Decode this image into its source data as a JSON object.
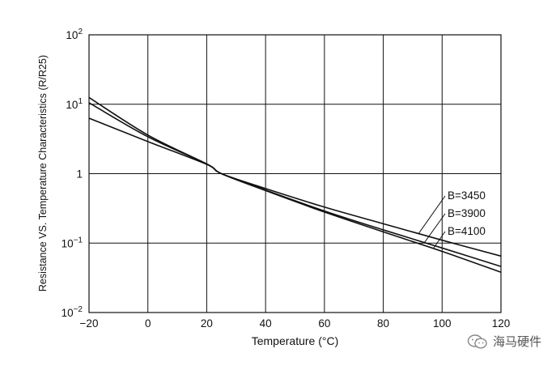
{
  "chart_data": {
    "type": "line",
    "title": "",
    "xlabel": "Temperature (°C)",
    "ylabel": "Resistance VS. Temperature Characteristics (R/R25)",
    "xlim": [
      -20,
      120
    ],
    "ylim_log10": [
      -2,
      2
    ],
    "yscale": "log",
    "grid": true,
    "x_ticks": [
      {
        "value": -20,
        "label": "−20"
      },
      {
        "value": 0,
        "label": "0"
      },
      {
        "value": 20,
        "label": "20"
      },
      {
        "value": 40,
        "label": "40"
      },
      {
        "value": 60,
        "label": "60"
      },
      {
        "value": 80,
        "label": "80"
      },
      {
        "value": 100,
        "label": "100"
      },
      {
        "value": 120,
        "label": "120"
      }
    ],
    "y_ticks": [
      {
        "exp": 2,
        "base": "10",
        "sup": "2"
      },
      {
        "exp": 1,
        "base": "10",
        "sup": "1"
      },
      {
        "exp": 0,
        "base": "1",
        "sup": ""
      },
      {
        "exp": -1,
        "base": "10",
        "sup": "−1"
      },
      {
        "exp": -2,
        "base": "10",
        "sup": "−2"
      }
    ],
    "x": [
      -20,
      0,
      20,
      25,
      40,
      60,
      80,
      100,
      120
    ],
    "series": [
      {
        "name": "B=3450",
        "values": [
          6.3,
          2.9,
          1.36,
          1.0,
          0.61,
          0.33,
          0.19,
          0.11,
          0.065
        ]
      },
      {
        "name": "B=3900",
        "values": [
          10.5,
          3.4,
          1.38,
          1.0,
          0.58,
          0.29,
          0.155,
          0.085,
          0.046
        ]
      },
      {
        "name": "B=4100",
        "values": [
          12.5,
          3.6,
          1.38,
          1.0,
          0.57,
          0.28,
          0.145,
          0.076,
          0.038
        ]
      }
    ],
    "annotations": [
      {
        "series": "B=3450",
        "text": "B=3450"
      },
      {
        "series": "B=3900",
        "text": "B=3900"
      },
      {
        "series": "B=4100",
        "text": "B=4100"
      }
    ]
  },
  "watermark": {
    "text": "海马硬件",
    "icon": "wechat-icon"
  }
}
